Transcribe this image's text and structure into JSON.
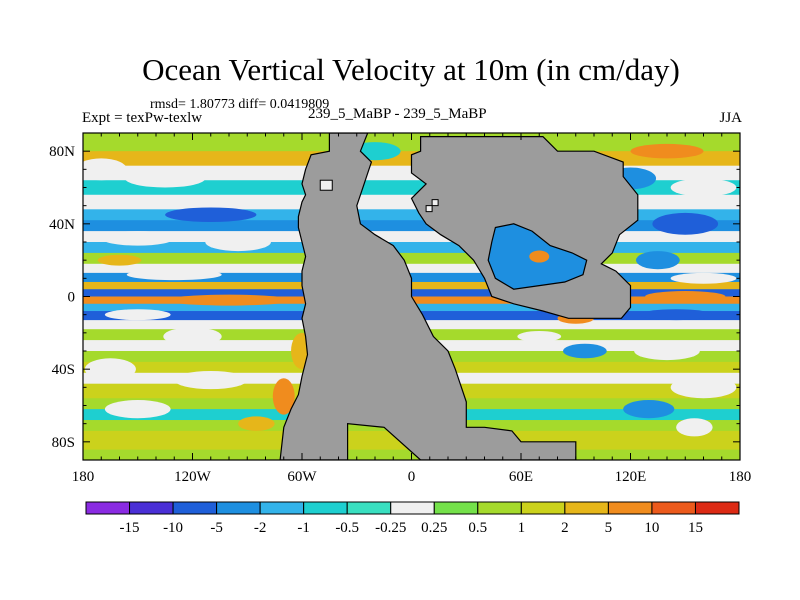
{
  "header": {
    "title": "Ocean Vertical Velocity at 10m (in cm/day)",
    "stats": "rmsd= 1.80773 diff= 0.0419809",
    "expt": "Expt = texPw-texlw",
    "case": "239_5_MaBP - 239_5_MaBP",
    "season": "JJA"
  },
  "chart_data": {
    "type": "heatmap",
    "title": "Ocean Vertical Velocity at 10m (in cm/day)",
    "units": "cm/day",
    "xlim": [
      -180,
      180
    ],
    "ylim": [
      -90,
      90
    ],
    "x_ticks": [
      {
        "value": -180,
        "label": "180"
      },
      {
        "value": -120,
        "label": "120W"
      },
      {
        "value": -60,
        "label": "60W"
      },
      {
        "value": 0,
        "label": "0"
      },
      {
        "value": 60,
        "label": "60E"
      },
      {
        "value": 120,
        "label": "120E"
      },
      {
        "value": 180,
        "label": "180"
      }
    ],
    "y_ticks": [
      {
        "value": 80,
        "label": "80N"
      },
      {
        "value": 40,
        "label": "40N"
      },
      {
        "value": 0,
        "label": "0"
      },
      {
        "value": -40,
        "label": "40S"
      },
      {
        "value": -80,
        "label": "80S"
      }
    ],
    "colorbar": {
      "levels": [
        "-15",
        "-10",
        "-5",
        "-2",
        "-1",
        "-0.5",
        "-0.25",
        "0.25",
        "0.5",
        "1",
        "2",
        "5",
        "10",
        "15"
      ],
      "colors": [
        "#8a2be2",
        "#4a2fd6",
        "#1f5fd9",
        "#1e8fe0",
        "#33b3ea",
        "#1ecfd0",
        "#39dfc0",
        "#f0f0f0",
        "#74e14a",
        "#a5da2c",
        "#cbd21c",
        "#e6b61a",
        "#f08c1e",
        "#ec5a1c",
        "#dc2a14"
      ]
    },
    "land_color": "#9c9c9c"
  }
}
